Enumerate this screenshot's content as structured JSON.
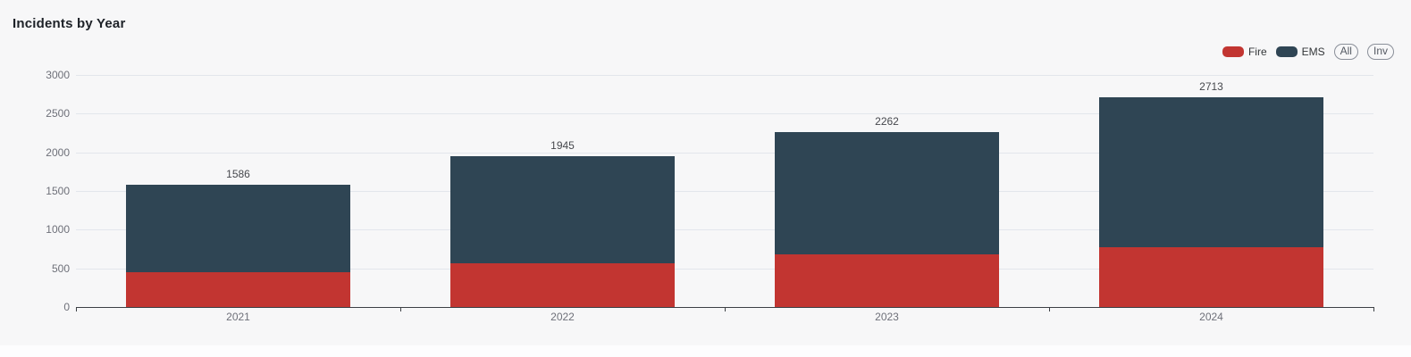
{
  "title": "Incidents by Year",
  "legend": {
    "items": [
      {
        "label": "Fire",
        "color": "#c23531"
      },
      {
        "label": "EMS",
        "color": "#2f4554"
      }
    ],
    "selector": [
      {
        "label": "All"
      },
      {
        "label": "Inv"
      }
    ]
  },
  "chart_data": {
    "type": "bar",
    "stacked": true,
    "title": "Incidents by Year",
    "xlabel": "",
    "ylabel": "",
    "categories": [
      "2021",
      "2022",
      "2023",
      "2024"
    ],
    "series": [
      {
        "name": "Fire",
        "color": "#c23531",
        "values": [
          450,
          570,
          685,
          770
        ]
      },
      {
        "name": "EMS",
        "color": "#2f4554",
        "values": [
          1136,
          1375,
          1577,
          1943
        ]
      }
    ],
    "totals": [
      1586,
      1945,
      2262,
      2713
    ],
    "ylim": [
      0,
      3000
    ],
    "ytick_step": 500,
    "y_ticks": [
      0,
      500,
      1000,
      1500,
      2000,
      2500,
      3000
    ],
    "grid": true,
    "legend_position": "top-right",
    "legend_selector_labels": [
      "All",
      "Inv"
    ]
  },
  "colors": {
    "background": "#f7f7f8",
    "fire": "#c23531",
    "ems": "#2f4554",
    "gridline": "#e3e6ec",
    "axis": "#3c4045",
    "axis_label": "#6e7079",
    "value_label": "#46484d",
    "title_text": "#1d2127"
  }
}
